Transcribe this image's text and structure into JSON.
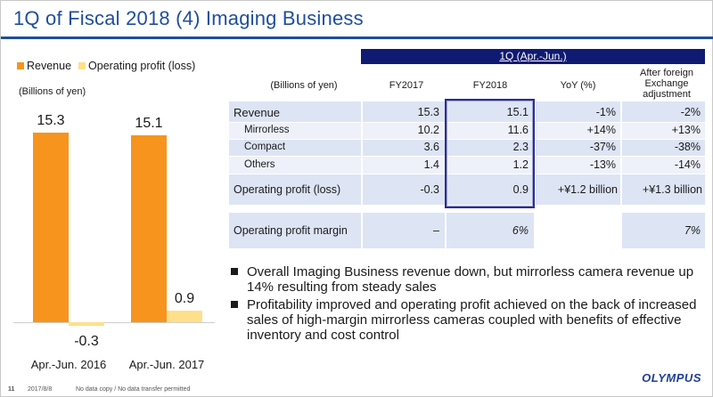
{
  "slide": {
    "title": "1Q of Fiscal 2018 (4) Imaging Business",
    "legend": {
      "revenue": "Revenue",
      "operating_profit": "Operating profit (loss)",
      "revenue_color": "#f7941d",
      "profit_color": "#ffe08a"
    },
    "units_left": "(Billions of yen)"
  },
  "chart_data": {
    "type": "bar",
    "categories": [
      "Apr.-Jun. 2016",
      "Apr.-Jun. 2017"
    ],
    "series": [
      {
        "name": "Revenue",
        "values": [
          15.3,
          15.1
        ],
        "labels": [
          "15.3",
          "15.1"
        ],
        "color": "#f7941d"
      },
      {
        "name": "Operating profit (loss)",
        "values": [
          -0.3,
          0.9
        ],
        "labels": [
          "-0.3",
          "0.9"
        ],
        "color": "#ffe08a"
      }
    ],
    "ylim": [
      -0.3,
      15.3
    ]
  },
  "table": {
    "period_header": "1Q (Apr.-Jun.)",
    "columns": {
      "units": "(Billions of yen)",
      "fy2017": "FY2017",
      "fy2018": "FY2018",
      "yoy": "YoY (%)",
      "fx": "After foreign Exchange adjustment"
    },
    "rows": [
      {
        "label": "Revenue",
        "fy2017": "15.3",
        "fy2018": "15.1",
        "yoy": "-1%",
        "fx": "-2%"
      },
      {
        "label": "Mirrorless",
        "fy2017": "10.2",
        "fy2018": "11.6",
        "yoy": "+14%",
        "fx": "+13%"
      },
      {
        "label": "Compact",
        "fy2017": "3.6",
        "fy2018": "2.3",
        "yoy": "-37%",
        "fx": "-38%"
      },
      {
        "label": "Others",
        "fy2017": "1.4",
        "fy2018": "1.2",
        "yoy": "-13%",
        "fx": "-14%"
      },
      {
        "label": "Operating profit (loss)",
        "fy2017": "-0.3",
        "fy2018": "0.9",
        "yoy": "+¥1.2 billion",
        "fx": "+¥1.3 billion"
      }
    ],
    "margin_row": {
      "label": "Operating profit margin",
      "fy2017": "–",
      "fy2018": "6%",
      "yoy": "",
      "fx": "7%"
    },
    "colors": {
      "header_bg": "#0f1a72",
      "row_blue": "#dde4f4",
      "row_light": "#eef1f9"
    }
  },
  "bullets": [
    "Overall Imaging Business revenue down, but mirrorless camera revenue up 14% resulting from steady sales",
    "Profitability improved and operating profit achieved on the back of increased sales of high-margin mirrorless cameras coupled with benefits of effective inventory and cost control"
  ],
  "footer": {
    "page": "11",
    "date": "2017/8/8",
    "note": "No data copy / No data transfer permitted",
    "logo": "OLYMPUS"
  }
}
